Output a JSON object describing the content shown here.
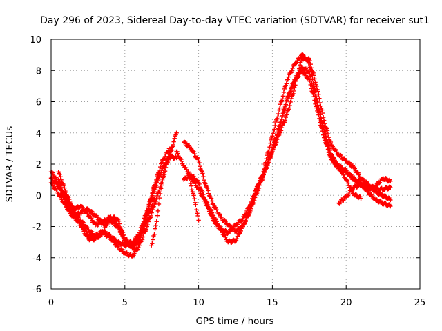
{
  "chart_data": {
    "type": "scatter",
    "title": "Day 296 of 2023, Sidereal Day-to-day VTEC variation (SDTVAR) for receiver sut1",
    "xlabel": "GPS time / hours",
    "ylabel": "SDTVAR / TECUs",
    "xlim": [
      0,
      25
    ],
    "ylim": [
      -6,
      10
    ],
    "xticks": [
      "0",
      "5",
      "10",
      "15",
      "20",
      "25"
    ],
    "yticks": [
      "10",
      "8",
      "6",
      "4",
      "2",
      "0",
      "-2",
      "-4",
      "-6"
    ],
    "grid": true,
    "marker": "plus",
    "marker_color": "#ff0000",
    "series": [
      {
        "name": "trace-1",
        "x": [
          0.0,
          0.5,
          1.0,
          1.5,
          2.0,
          2.5,
          3.0,
          3.5,
          4.0,
          4.5,
          5.0,
          5.5,
          6.0,
          6.5,
          7.0,
          7.5,
          8.0,
          8.5
        ],
        "y": [
          1.5,
          0.8,
          -0.2,
          -1.1,
          -1.6,
          -2.2,
          -2.6,
          -2.3,
          -2.6,
          -3.0,
          -3.2,
          -3.1,
          -2.4,
          -1.0,
          0.4,
          1.6,
          2.5,
          2.4
        ]
      },
      {
        "name": "trace-2",
        "x": [
          0.5,
          1.0,
          1.5,
          2.0,
          2.5,
          3.0,
          3.5,
          4.0,
          4.5,
          5.0,
          5.5,
          6.0,
          6.5,
          7.0,
          7.5,
          8.0,
          8.5
        ],
        "y": [
          1.5,
          0.2,
          -0.9,
          -1.8,
          -2.5,
          -2.7,
          -2.4,
          -2.7,
          -3.3,
          -3.7,
          -3.9,
          -3.2,
          -2.0,
          -0.6,
          0.8,
          2.5,
          4.0
        ]
      },
      {
        "name": "trace-3",
        "x": [
          0.5,
          1.0,
          1.5,
          2.0,
          2.5,
          3.0,
          3.5,
          4.0,
          4.5,
          5.0,
          5.5,
          6.0,
          6.5,
          7.0,
          7.5,
          8.0
        ],
        "y": [
          1.0,
          -0.3,
          -0.9,
          -0.7,
          -1.2,
          -1.9,
          -1.7,
          -1.4,
          -1.9,
          -2.8,
          -3.1,
          -2.6,
          -1.3,
          0.6,
          2.1,
          3.0
        ]
      },
      {
        "name": "trace-4",
        "x": [
          0.0,
          0.5,
          1.0,
          1.5,
          2.0,
          2.5,
          3.0,
          3.5,
          4.0,
          4.5,
          5.0,
          5.5,
          6.0,
          6.5,
          7.0
        ],
        "y": [
          1.1,
          0.6,
          -0.4,
          -1.3,
          -1.9,
          -2.8,
          -2.8,
          -2.4,
          -1.4,
          -1.5,
          -2.8,
          -3.4,
          -2.9,
          -1.1,
          0.6
        ]
      },
      {
        "name": "trace-5",
        "x": [
          0.0,
          0.5,
          1.0,
          1.5,
          2.0,
          2.5,
          3.0,
          3.5,
          4.0,
          4.5,
          5.0,
          5.5,
          6.0,
          6.5,
          7.0,
          7.2
        ],
        "y": [
          0.8,
          0.1,
          -0.7,
          -1.4,
          -1.1,
          -0.9,
          -1.3,
          -1.8,
          -1.6,
          -2.0,
          -2.9,
          -3.3,
          -2.7,
          -1.6,
          -0.2,
          1.3
        ]
      },
      {
        "name": "trace-6",
        "x": [
          6.8,
          7.0,
          7.2,
          7.4,
          7.6,
          7.8,
          8.0,
          8.2
        ],
        "y": [
          -3.2,
          -2.5,
          -1.3,
          0.1,
          1.3,
          2.1,
          2.7,
          2.9
        ]
      },
      {
        "name": "trace-7",
        "x": [
          8.5,
          9.0,
          9.5,
          10.0,
          10.5,
          11.0,
          11.5,
          12.0,
          12.5,
          13.0,
          13.5,
          14.0,
          14.5,
          15.0,
          15.5,
          16.0,
          16.5,
          17.0,
          17.5,
          18.0,
          18.5,
          19.0,
          19.5,
          20.0,
          20.5,
          21.0,
          21.5,
          22.0,
          22.5,
          23.0
        ],
        "y": [
          2.8,
          1.9,
          1.1,
          0.4,
          -0.5,
          -1.6,
          -2.2,
          -2.4,
          -1.9,
          -1.5,
          -0.6,
          0.6,
          1.6,
          2.9,
          4.5,
          6.2,
          7.4,
          8.2,
          7.9,
          6.0,
          4.1,
          2.3,
          1.7,
          1.6,
          1.0,
          0.8,
          0.6,
          0.4,
          0.4,
          0.5
        ]
      },
      {
        "name": "trace-8",
        "x": [
          9.0,
          9.5,
          10.0,
          10.5,
          11.0,
          11.5,
          12.0,
          12.5,
          13.0,
          13.5,
          14.0,
          14.5,
          15.0,
          15.5,
          16.0,
          16.5,
          17.0,
          17.5,
          18.0,
          18.5,
          19.0,
          19.5,
          20.0,
          20.5,
          21.0,
          21.5,
          22.0,
          22.5,
          23.0
        ],
        "y": [
          3.4,
          3.0,
          2.2,
          0.6,
          -0.6,
          -1.4,
          -1.9,
          -2.3,
          -2.0,
          -1.0,
          0.3,
          1.5,
          2.8,
          4.0,
          5.2,
          6.9,
          8.8,
          8.7,
          7.0,
          4.8,
          3.2,
          2.6,
          2.2,
          1.8,
          1.1,
          0.7,
          0.2,
          0.0,
          -0.3
        ]
      },
      {
        "name": "trace-9",
        "x": [
          9.0,
          9.5,
          10.0,
          10.5,
          11.0,
          11.5,
          12.0,
          12.5,
          13.0,
          13.5,
          14.0,
          14.5,
          15.0,
          15.5,
          16.0,
          16.5,
          17.0,
          17.5,
          18.0,
          18.5,
          19.0,
          19.5,
          20.0,
          20.5,
          21.0,
          21.5,
          22.0,
          22.5,
          23.0
        ],
        "y": [
          1.0,
          1.3,
          0.8,
          -0.4,
          -1.3,
          -2.2,
          -3.0,
          -2.9,
          -2.0,
          -0.8,
          0.6,
          1.7,
          2.9,
          4.4,
          6.1,
          7.3,
          8.0,
          7.4,
          5.6,
          3.7,
          2.3,
          1.9,
          1.5,
          1.1,
          0.7,
          0.2,
          -0.3,
          -0.5,
          -0.7
        ]
      },
      {
        "name": "trace-10",
        "x": [
          9.3,
          9.5,
          9.8,
          10.0
        ],
        "y": [
          1.5,
          0.6,
          -0.6,
          -1.6
        ]
      },
      {
        "name": "trace-11",
        "x": [
          14.5,
          15.0,
          15.5,
          16.0,
          16.5,
          17.0,
          17.5,
          18.0,
          18.5,
          19.0,
          19.5,
          20.0,
          20.5,
          21.0
        ],
        "y": [
          2.0,
          3.8,
          5.6,
          7.4,
          8.4,
          9.0,
          8.5,
          6.2,
          4.2,
          2.6,
          1.8,
          1.0,
          0.1,
          -0.2
        ]
      },
      {
        "name": "trace-12",
        "x": [
          19.5,
          20.0,
          20.5,
          21.0,
          21.5,
          22.0,
          22.5,
          23.0
        ],
        "y": [
          -0.5,
          -0.1,
          0.5,
          0.7,
          0.4,
          0.6,
          1.1,
          0.9
        ]
      }
    ]
  }
}
